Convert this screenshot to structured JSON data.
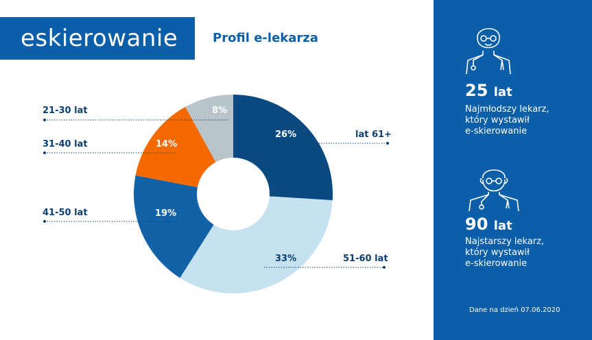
{
  "logo_text": "eskierowanie",
  "title": "Profil e-lekarza",
  "chart_data": {
    "type": "pie",
    "donut": true,
    "categories": [
      "lat 61+",
      "51-60 lat",
      "41-50 lat",
      "31-40 lat",
      "21-30 lat"
    ],
    "values": [
      26,
      33,
      19,
      14,
      8
    ],
    "value_labels": [
      "26%",
      "33%",
      "19%",
      "14%",
      "8%"
    ],
    "colors": [
      "#0a4a80",
      "#c6e1ef",
      "#1262a8",
      "#f56a00",
      "#b8c3ca"
    ]
  },
  "side": {
    "youngest": {
      "value": "25",
      "unit": "lat",
      "line1": "Najmłodszy lekarz,",
      "line2": "który wystawił",
      "line3": "e-skierowanie"
    },
    "oldest": {
      "value": "90",
      "unit": "lat",
      "line1": "Najstarszy lekarz,",
      "line2": "który wystawił",
      "line3": "e-skierowanie"
    },
    "date": "Dane na dzień 07.06.2020"
  }
}
